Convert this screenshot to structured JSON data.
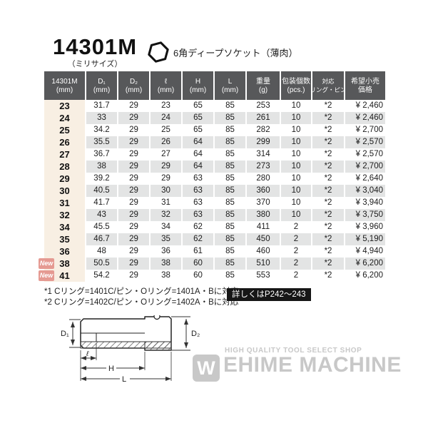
{
  "header": {
    "model": "14301M",
    "model_note": "（ミリサイズ）",
    "product_type": "6角ディープソケット（薄肉）"
  },
  "table": {
    "header_bg": "#57585a",
    "size_col_bg": "#f8efe3",
    "alt_row_bg": "#e3e4e4",
    "new_badge_color": "#e59a92",
    "new_badge_label": "New",
    "columns": [
      {
        "l1": "14301M",
        "l2": "(mm)"
      },
      {
        "l1": "D₁",
        "l2": "(mm)"
      },
      {
        "l1": "D₂",
        "l2": "(mm)"
      },
      {
        "l1": "ℓ",
        "l2": "(mm)"
      },
      {
        "l1": "H",
        "l2": "(mm)"
      },
      {
        "l1": "L",
        "l2": "(mm)"
      },
      {
        "l1": "重量",
        "l2": "(g)"
      },
      {
        "l1": "包装個数",
        "l2": "(pcs.)"
      },
      {
        "l1": "対応",
        "l2": "リング・ピン"
      },
      {
        "l1": "希望小売",
        "l2": "価格"
      }
    ],
    "rows": [
      {
        "new": false,
        "cells": [
          "23",
          "31.7",
          "29",
          "23",
          "65",
          "85",
          "253",
          "10",
          "*2",
          "¥ 2,460"
        ]
      },
      {
        "new": false,
        "cells": [
          "24",
          "33",
          "29",
          "24",
          "65",
          "85",
          "261",
          "10",
          "*2",
          "¥ 2,460"
        ]
      },
      {
        "new": false,
        "cells": [
          "25",
          "34.2",
          "29",
          "25",
          "65",
          "85",
          "282",
          "10",
          "*2",
          "¥ 2,700"
        ]
      },
      {
        "new": false,
        "cells": [
          "26",
          "35.5",
          "29",
          "26",
          "64",
          "85",
          "299",
          "10",
          "*2",
          "¥ 2,570"
        ]
      },
      {
        "new": false,
        "cells": [
          "27",
          "36.7",
          "29",
          "27",
          "64",
          "85",
          "314",
          "10",
          "*2",
          "¥ 2,570"
        ]
      },
      {
        "new": false,
        "cells": [
          "28",
          "38",
          "29",
          "29",
          "64",
          "85",
          "273",
          "10",
          "*2",
          "¥ 2,700"
        ]
      },
      {
        "new": false,
        "cells": [
          "29",
          "39.2",
          "29",
          "29",
          "63",
          "85",
          "280",
          "10",
          "*2",
          "¥ 2,640"
        ]
      },
      {
        "new": false,
        "cells": [
          "30",
          "40.5",
          "29",
          "30",
          "63",
          "85",
          "360",
          "10",
          "*2",
          "¥ 3,040"
        ]
      },
      {
        "new": false,
        "cells": [
          "31",
          "41.7",
          "29",
          "31",
          "63",
          "85",
          "370",
          "10",
          "*2",
          "¥ 3,940"
        ]
      },
      {
        "new": false,
        "cells": [
          "32",
          "43",
          "29",
          "32",
          "63",
          "85",
          "380",
          "10",
          "*2",
          "¥ 3,750"
        ]
      },
      {
        "new": false,
        "cells": [
          "34",
          "45.5",
          "29",
          "34",
          "62",
          "85",
          "411",
          "2",
          "*2",
          "¥ 3,960"
        ]
      },
      {
        "new": false,
        "cells": [
          "35",
          "46.7",
          "29",
          "35",
          "62",
          "85",
          "450",
          "2",
          "*2",
          "¥ 5,190"
        ]
      },
      {
        "new": false,
        "cells": [
          "36",
          "48",
          "29",
          "36",
          "61",
          "85",
          "460",
          "2",
          "*2",
          "¥ 4,940"
        ]
      },
      {
        "new": true,
        "cells": [
          "38",
          "50.5",
          "29",
          "38",
          "60",
          "85",
          "510",
          "2",
          "*2",
          "¥ 6,200"
        ]
      },
      {
        "new": true,
        "cells": [
          "41",
          "54.2",
          "29",
          "38",
          "60",
          "85",
          "553",
          "2",
          "*2",
          "¥ 6,200"
        ]
      }
    ]
  },
  "footnotes": {
    "line1": "*1 Cリング=1401C/ピン・Oリング=1401A・Bに対応",
    "line2": "*2 Cリング=1402C/ピン・Oリング=1402A・Bに対応",
    "detail_badge": "詳しくはP242～243"
  },
  "diagram": {
    "labels": {
      "d1": "D₁",
      "d2": "D₂",
      "l_bore": "ℓ",
      "h": "H",
      "l": "L"
    }
  },
  "watermark": {
    "logo_letter": "W",
    "tagline": "HIGH QUALITY TOOL SELECT SHOP",
    "brand": "EHIME MACHINE"
  }
}
